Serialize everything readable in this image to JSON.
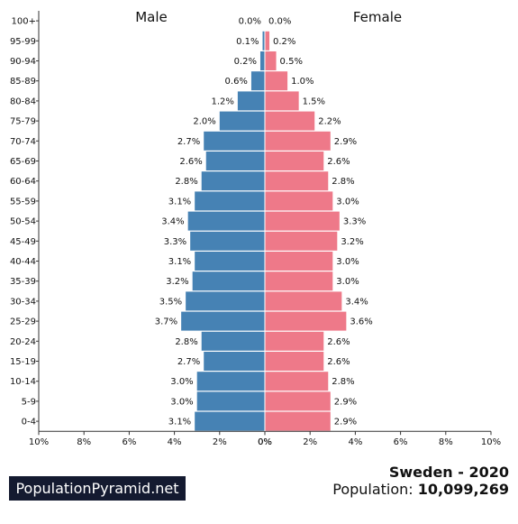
{
  "chart_data": {
    "type": "bar",
    "orientation": "horizontal-pyramid",
    "categories": [
      "100+",
      "95-99",
      "90-94",
      "85-89",
      "80-84",
      "75-79",
      "70-74",
      "65-69",
      "60-64",
      "55-59",
      "50-54",
      "45-49",
      "40-44",
      "35-39",
      "30-34",
      "25-29",
      "20-24",
      "15-19",
      "10-14",
      "5-9",
      "0-4"
    ],
    "series": [
      {
        "name": "Male",
        "values": [
          0.0,
          0.1,
          0.2,
          0.6,
          1.2,
          2.0,
          2.7,
          2.6,
          2.8,
          3.1,
          3.4,
          3.3,
          3.1,
          3.2,
          3.5,
          3.7,
          2.8,
          2.7,
          3.0,
          3.0,
          3.1
        ],
        "labels": [
          "0.0%",
          "0.1%",
          "0.2%",
          "0.6%",
          "1.2%",
          "2.0%",
          "2.7%",
          "2.6%",
          "2.8%",
          "3.1%",
          "3.4%",
          "3.3%",
          "3.1%",
          "3.2%",
          "3.5%",
          "3.7%",
          "2.8%",
          "2.7%",
          "3.0%",
          "3.0%",
          "3.1%"
        ]
      },
      {
        "name": "Female",
        "values": [
          0.0,
          0.2,
          0.5,
          1.0,
          1.5,
          2.2,
          2.9,
          2.6,
          2.8,
          3.0,
          3.3,
          3.2,
          3.0,
          3.0,
          3.4,
          3.6,
          2.6,
          2.6,
          2.8,
          2.9,
          2.9
        ],
        "labels": [
          "0.0%",
          "0.2%",
          "0.5%",
          "1.0%",
          "1.5%",
          "2.2%",
          "2.9%",
          "2.6%",
          "2.8%",
          "3.0%",
          "3.3%",
          "3.2%",
          "3.0%",
          "3.0%",
          "3.4%",
          "3.6%",
          "2.6%",
          "2.6%",
          "2.8%",
          "2.9%",
          "2.9%"
        ]
      }
    ],
    "xlim": [
      0,
      10
    ],
    "xticks": [
      "10%",
      "8%",
      "6%",
      "4%",
      "2%",
      "0%",
      "0%",
      "2%",
      "4%",
      "6%",
      "8%",
      "10%"
    ],
    "grid": false
  },
  "colors": {
    "male": "#4682b4",
    "female": "#ee7989",
    "brand_bg": "#141a30"
  },
  "brand": "PopulationPyramid.net",
  "country_year": "Sweden - 2020",
  "population_label": "Population:",
  "population_value": "10,099,269"
}
